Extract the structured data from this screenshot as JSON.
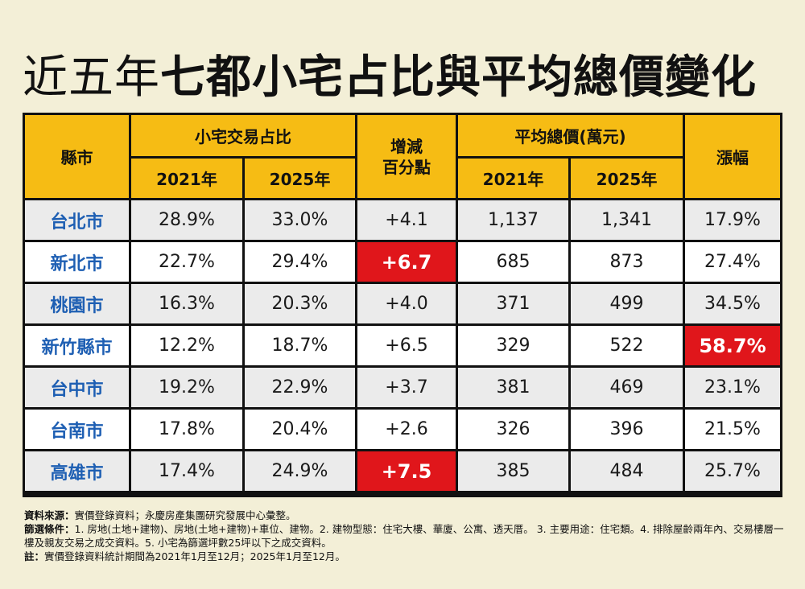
{
  "title": {
    "prefix": "近五年",
    "main": "七都小宅占比與平均總價變化"
  },
  "table": {
    "header": {
      "city": "縣市",
      "share_group": "小宅交易占比",
      "diff": [
        "增減",
        "百分點"
      ],
      "price_group": "平均總價(萬元)",
      "growth": "漲幅",
      "year_2021": "2021年",
      "year_2025": "2025年"
    },
    "rows": [
      {
        "city": "台北市",
        "s2021": "28.9%",
        "s2025": "33.0%",
        "diff": "+4.1",
        "p2021": "1,137",
        "p2025": "1,341",
        "growth": "17.9%"
      },
      {
        "city": "新北市",
        "s2021": "22.7%",
        "s2025": "29.4%",
        "diff": "+6.7",
        "p2021": "685",
        "p2025": "873",
        "growth": "27.4%"
      },
      {
        "city": "桃園市",
        "s2021": "16.3%",
        "s2025": "20.3%",
        "diff": "+4.0",
        "p2021": "371",
        "p2025": "499",
        "growth": "34.5%"
      },
      {
        "city": "新竹縣市",
        "s2021": "12.2%",
        "s2025": "18.7%",
        "diff": "+6.5",
        "p2021": "329",
        "p2025": "522",
        "growth": "58.7%"
      },
      {
        "city": "台中市",
        "s2021": "19.2%",
        "s2025": "22.9%",
        "diff": "+3.7",
        "p2021": "381",
        "p2025": "469",
        "growth": "23.1%"
      },
      {
        "city": "台南市",
        "s2021": "17.8%",
        "s2025": "20.4%",
        "diff": "+2.6",
        "p2021": "326",
        "p2025": "396",
        "growth": "21.5%"
      },
      {
        "city": "高雄市",
        "s2021": "17.4%",
        "s2025": "24.9%",
        "diff": "+7.5",
        "p2021": "385",
        "p2025": "484",
        "growth": "25.7%"
      }
    ],
    "highlights": [
      {
        "row": 1,
        "col": "diff"
      },
      {
        "row": 3,
        "col": "growth"
      },
      {
        "row": 6,
        "col": "diff"
      }
    ],
    "colors": {
      "header": "#f6bc14",
      "highlight": "#e0161b",
      "city_text": "#1e5fb3"
    }
  },
  "notes": {
    "source_label": "資料來源：",
    "source_text": "實價登錄資料；永慶房產集團研究發展中心彙整。",
    "filter_label": "篩選條件：",
    "filter_text": "1. 房地(土地+建物)、房地(土地+建物)+車位、建物。2. 建物型態：住宅大樓、華廈、公寓、透天厝。 3. 主要用途：住宅類。4. 排除屋齡兩年內、交易樓層一樓及親友交易之成交資料。5. 小宅為篩選坪數25坪以下之成交資料。",
    "note_label": "註：",
    "note_text": "實價登錄資料統計期間為2021年1月至12月；2025年1月至12月。"
  }
}
